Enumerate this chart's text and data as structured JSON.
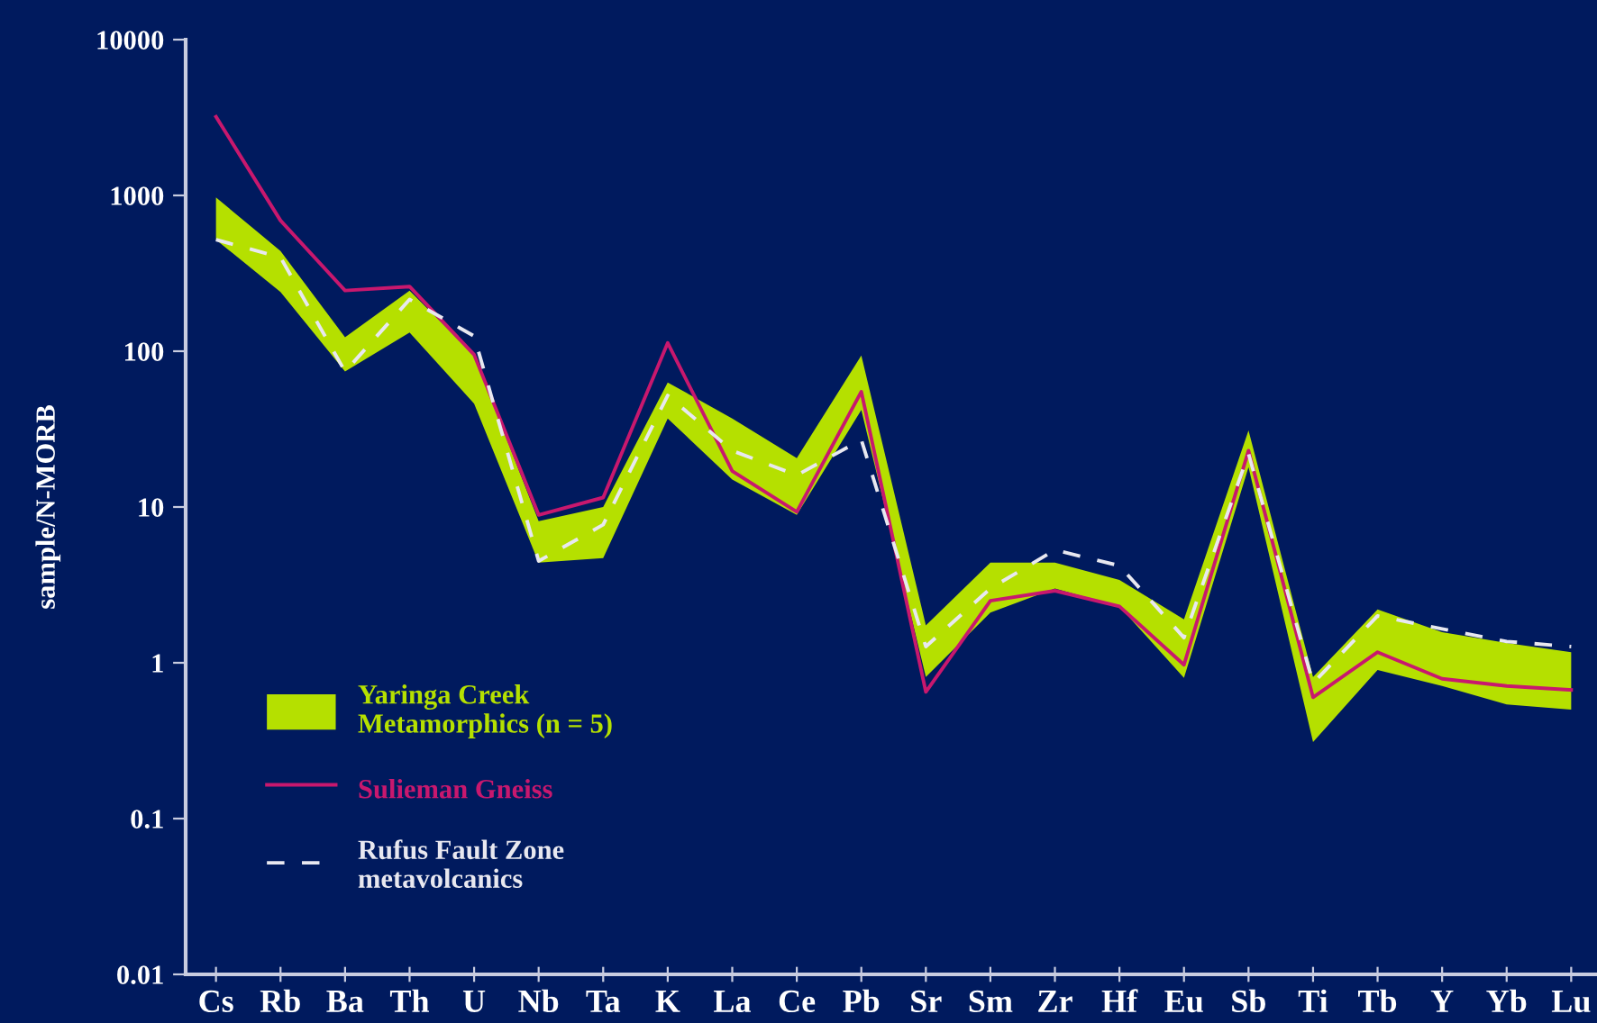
{
  "chart_data": {
    "type": "line",
    "ylabel": "sample/N-MORB",
    "log": true,
    "ylim": [
      0.01,
      10000
    ],
    "yticks": [
      0.01,
      0.1,
      1,
      10,
      100,
      1000,
      10000
    ],
    "grid": false,
    "legend": "bottom left",
    "categories": [
      "Cs",
      "Rb",
      "Ba",
      "Th",
      "U",
      "Nb",
      "Ta",
      "K",
      "La",
      "Ce",
      "Pb",
      "Sr",
      "Sm",
      "Zr",
      "Hf",
      "Eu",
      "Sb",
      "Ti",
      "Tb",
      "Y",
      "Yb",
      "Lu"
    ],
    "series": [
      {
        "name": "Yaringa Creek Metamorphics (n = 5)",
        "type": "area",
        "color": "#b5e000",
        "values": [
          null,
          null,
          null,
          null,
          null,
          null,
          null,
          null,
          null,
          null,
          null,
          null,
          null,
          null,
          null,
          null,
          null,
          null,
          null,
          null,
          null,
          null
        ],
        "lower": [
          520,
          240,
          74,
          132,
          46,
          4.4,
          4.7,
          37,
          15,
          8.9,
          42,
          0.81,
          2.1,
          3.0,
          2.3,
          0.8,
          18,
          0.31,
          0.9,
          0.71,
          0.54,
          0.5
        ],
        "upper": [
          970,
          440,
          123,
          245,
          94,
          8.1,
          10,
          63,
          37,
          20.6,
          94,
          1.74,
          4.4,
          4.4,
          3.4,
          1.9,
          31,
          0.81,
          2.2,
          1.57,
          1.34,
          1.17
        ]
      },
      {
        "name": "Sulieman Gneiss",
        "color": "#c8186e",
        "line_style": "solid",
        "values": [
          3200,
          690,
          245,
          260,
          95,
          8.9,
          11.5,
          113,
          17,
          9.3,
          55,
          0.65,
          2.5,
          2.9,
          2.3,
          0.97,
          23,
          0.6,
          1.17,
          0.79,
          0.71,
          0.67
        ]
      },
      {
        "name": "Rufus Fault Zone metavolcanics",
        "color": "#e8e8f0",
        "line_style": "dashed",
        "values": [
          520,
          400,
          74,
          215,
          125,
          4.5,
          7.7,
          52,
          23,
          16,
          27,
          1.27,
          3.0,
          5.3,
          4.2,
          1.45,
          22,
          0.74,
          2.0,
          1.65,
          1.37,
          1.27
        ]
      }
    ]
  }
}
